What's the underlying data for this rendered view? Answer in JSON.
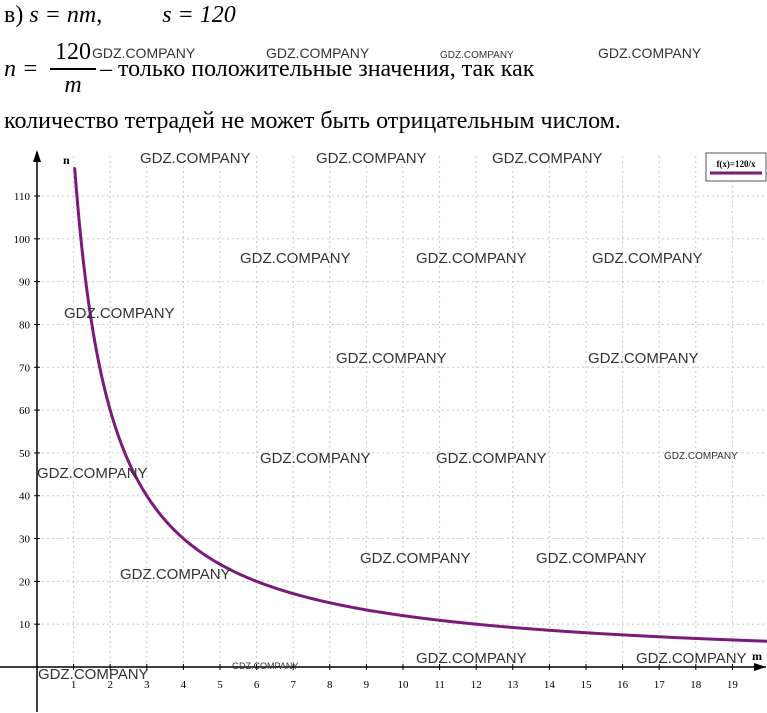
{
  "text": {
    "line1_label": "в)",
    "line1_eq1": "s = nm,",
    "line1_eq2": "s = 120",
    "line2_lhs": "n =",
    "line2_num": "120",
    "line2_den": "m",
    "line2_rest": "– только положительные значения, так как",
    "line3": "количество тетрадей не может быть отрицательным числом."
  },
  "watermark": "GDZ.COMPANY",
  "colors": {
    "curve": "#7b1a7b",
    "grid": "#c8c8c8",
    "axis": "#000000"
  },
  "chart_data": {
    "type": "line",
    "function": "120/x",
    "legend": "f(x)=120/x",
    "legend_position": "top-right",
    "xlabel": "m",
    "ylabel": "n",
    "xlim": [
      0,
      20
    ],
    "ylim": [
      0,
      120
    ],
    "x_ticks": [
      1,
      2,
      3,
      4,
      5,
      6,
      7,
      8,
      9,
      10,
      11,
      12,
      13,
      14,
      15,
      16,
      17,
      18,
      19
    ],
    "y_ticks": [
      10,
      20,
      30,
      40,
      50,
      60,
      70,
      80,
      90,
      100,
      110
    ],
    "grid": true,
    "series": [
      {
        "name": "f(x)=120/x",
        "x": [
          1.03,
          1.2,
          1.5,
          2,
          2.5,
          3,
          4,
          5,
          6,
          8,
          10,
          12,
          15,
          20
        ],
        "values": [
          116.5,
          100,
          80,
          60,
          48,
          40,
          30,
          24,
          20,
          15,
          12,
          10,
          8,
          6
        ]
      }
    ]
  }
}
